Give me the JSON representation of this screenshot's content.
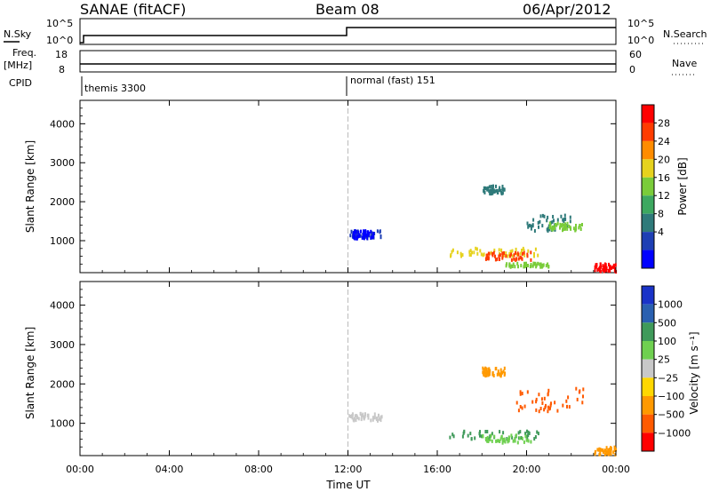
{
  "header": {
    "station": "SANAE (fitACF)",
    "beam": "Beam 08",
    "date": "06/Apr/2012"
  },
  "strip1": {
    "left_label": "N.Sky",
    "left_ticks": [
      "10^5",
      "10^0"
    ],
    "right_label": "N.Search",
    "right_ticks": [
      "10^5",
      "10^0"
    ]
  },
  "strip2": {
    "left_label_line1": "Freq.",
    "left_label_line2": "[MHz]",
    "left_ticks": [
      "18",
      "8"
    ],
    "right_label": "Nave",
    "right_ticks": [
      "60",
      "0"
    ]
  },
  "cpid": {
    "label": "CPID",
    "modes": [
      {
        "name": "themis 3300",
        "start_hour": 0.0
      },
      {
        "name": "normal (fast) 151",
        "start_hour": 12.0
      }
    ]
  },
  "colors": {
    "power": [
      "#0000ff",
      "#1e3fb4",
      "#2f7a7a",
      "#3da860",
      "#7acc3a",
      "#e6d21e",
      "#ff8c00",
      "#ff3c00",
      "#ff0000"
    ],
    "velocity": [
      "#1a33c8",
      "#2a60b0",
      "#3f9a5a",
      "#6fd050",
      "#c8c8c8",
      "#ffd700",
      "#ff9900",
      "#ff5a00",
      "#ff0000"
    ]
  },
  "chart_data": [
    {
      "type": "heatmap",
      "title": "",
      "xlabel": "Time UT",
      "ylabel": "Slant Range [km]",
      "x_ticks": [
        "00:00",
        "04:00",
        "08:00",
        "12:00",
        "16:00",
        "20:00",
        "00:00"
      ],
      "xlim_hours": [
        0,
        24
      ],
      "y_ticks": [
        1000,
        2000,
        3000,
        4000
      ],
      "ylim": [
        180,
        4600
      ],
      "colorbar_label": "Power [dB]",
      "colorbar_ticks": [
        "28",
        "24",
        "20",
        "16",
        "12",
        "8",
        "4"
      ],
      "clim": [
        0,
        30
      ],
      "regions": [
        {
          "t": [
            12.0,
            13.5
          ],
          "r": [
            1050,
            1250
          ],
          "level": 5
        },
        {
          "t": [
            12.2,
            13.2
          ],
          "r": [
            1050,
            1250
          ],
          "level": 3
        },
        {
          "t": [
            18.0,
            19.0
          ],
          "r": [
            2200,
            2400
          ],
          "level": 9
        },
        {
          "t": [
            20.0,
            22.0
          ],
          "r": [
            1250,
            1650
          ],
          "level": 8
        },
        {
          "t": [
            21.0,
            22.5
          ],
          "r": [
            1250,
            1450
          ],
          "level": 16
        },
        {
          "t": [
            16.5,
            20.5
          ],
          "r": [
            600,
            800
          ],
          "level": 18
        },
        {
          "t": [
            18.0,
            20.2
          ],
          "r": [
            500,
            700
          ],
          "level": 24
        },
        {
          "t": [
            19.0,
            21.0
          ],
          "r": [
            320,
            420
          ],
          "level": 14
        },
        {
          "t": [
            23.0,
            24.0
          ],
          "r": [
            200,
            400
          ],
          "level": 30
        }
      ]
    },
    {
      "type": "heatmap",
      "title": "",
      "xlabel": "Time UT",
      "ylabel": "Slant Range [km]",
      "x_ticks": [
        "00:00",
        "04:00",
        "08:00",
        "12:00",
        "16:00",
        "20:00",
        "00:00"
      ],
      "xlim_hours": [
        0,
        24
      ],
      "y_ticks": [
        1000,
        2000,
        3000,
        4000
      ],
      "ylim": [
        180,
        4600
      ],
      "colorbar_label": "Velocity [m s⁻¹]",
      "colorbar_ticks": [
        "1000",
        "500",
        "100",
        "25",
        "−25",
        "−100",
        "−500",
        "−1000"
      ],
      "regions": [
        {
          "t": [
            12.0,
            13.5
          ],
          "r": [
            1050,
            1250
          ],
          "v": 0
        },
        {
          "t": [
            18.0,
            19.0
          ],
          "r": [
            2200,
            2400
          ],
          "v": -300
        },
        {
          "t": [
            19.5,
            22.5
          ],
          "r": [
            1300,
            1900
          ],
          "v": -600
        },
        {
          "t": [
            16.5,
            20.5
          ],
          "r": [
            600,
            800
          ],
          "v": 150
        },
        {
          "t": [
            18.0,
            20.2
          ],
          "r": [
            500,
            700
          ],
          "v": 40
        },
        {
          "t": [
            23.0,
            24.0
          ],
          "r": [
            200,
            400
          ],
          "v": -400
        }
      ]
    }
  ]
}
